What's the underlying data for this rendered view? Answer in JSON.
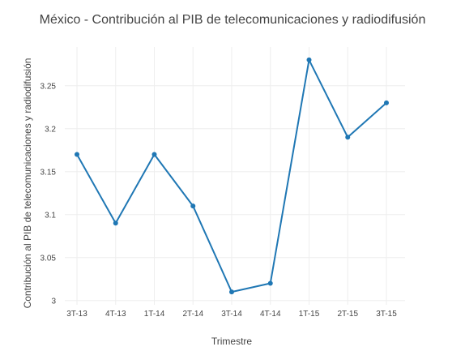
{
  "chart_data": {
    "type": "line",
    "title": "México - Contribución al PIB de telecomunicaciones y radiodifusión",
    "xlabel": "Trimestre",
    "ylabel": "Contribución al PIB de telecomunicaciones y radiodifusión",
    "categories": [
      "3T-13",
      "4T-13",
      "1T-14",
      "2T-14",
      "3T-14",
      "4T-14",
      "1T-15",
      "2T-15",
      "3T-15"
    ],
    "series": [
      {
        "values": [
          3.17,
          3.09,
          3.17,
          3.11,
          3.01,
          3.02,
          3.28,
          3.19,
          3.23
        ],
        "color": "#1f77b4"
      }
    ],
    "yticks": [
      "3",
      "3.05",
      "3.1",
      "3.15",
      "3.2",
      "3.25"
    ],
    "ylim": [
      2.995,
      3.295
    ],
    "grid": true,
    "legend": false
  }
}
